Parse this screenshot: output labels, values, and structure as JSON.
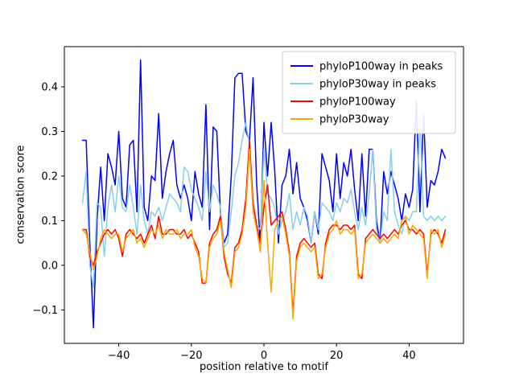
{
  "chart_data": {
    "type": "line",
    "title": "",
    "xlabel": "position relative to motif",
    "ylabel": "conservation score",
    "xlim": [
      -55,
      55
    ],
    "ylim": [
      -0.175,
      0.49
    ],
    "xticks": [
      -40,
      -20,
      0,
      20,
      40
    ],
    "xtick_labels": [
      "−40",
      "−20",
      "0",
      "20",
      "40"
    ],
    "yticks": [
      -0.1,
      0.0,
      0.1,
      0.2,
      0.3,
      0.4
    ],
    "ytick_labels": [
      "−0.1",
      "0.0",
      "0.1",
      "0.2",
      "0.3",
      "0.4"
    ],
    "grid": false,
    "legend_position": "upper right",
    "x": [
      -50,
      -49,
      -48,
      -47,
      -46,
      -45,
      -44,
      -43,
      -42,
      -41,
      -40,
      -39,
      -38,
      -37,
      -36,
      -35,
      -34,
      -33,
      -32,
      -31,
      -30,
      -29,
      -28,
      -27,
      -26,
      -25,
      -24,
      -23,
      -22,
      -21,
      -20,
      -19,
      -18,
      -17,
      -16,
      -15,
      -14,
      -13,
      -12,
      -11,
      -10,
      -9,
      -8,
      -7,
      -6,
      -5,
      -4,
      -3,
      -2,
      -1,
      0,
      1,
      2,
      3,
      4,
      5,
      6,
      7,
      8,
      9,
      10,
      11,
      12,
      13,
      14,
      15,
      16,
      17,
      18,
      19,
      20,
      21,
      22,
      23,
      24,
      25,
      26,
      27,
      28,
      29,
      30,
      31,
      32,
      33,
      34,
      35,
      36,
      37,
      38,
      39,
      40,
      41,
      42,
      43,
      44,
      45,
      46,
      47,
      48,
      49,
      50
    ],
    "series": [
      {
        "name": "phyloP100way in peaks",
        "color": "#0000ff",
        "values": [
          0.28,
          0.28,
          0.05,
          -0.14,
          0.1,
          0.22,
          0.1,
          0.25,
          0.22,
          0.18,
          0.3,
          0.15,
          0.13,
          0.27,
          0.28,
          0.12,
          0.46,
          0.13,
          0.1,
          0.2,
          0.19,
          0.34,
          0.15,
          0.21,
          0.25,
          0.28,
          0.18,
          0.15,
          0.18,
          0.15,
          0.1,
          0.21,
          0.16,
          0.13,
          0.36,
          0.08,
          0.31,
          0.3,
          0.12,
          0.05,
          0.07,
          0.2,
          0.42,
          0.43,
          0.43,
          0.3,
          0.28,
          0.42,
          0.18,
          0.05,
          0.32,
          0.2,
          0.32,
          0.21,
          0.05,
          0.18,
          0.2,
          0.26,
          0.16,
          0.23,
          0.15,
          0.13,
          0.1,
          0.05,
          0.12,
          0.07,
          0.25,
          0.22,
          0.19,
          0.12,
          0.25,
          0.15,
          0.23,
          0.2,
          0.26,
          0.17,
          0.1,
          0.25,
          0.11,
          0.26,
          0.26,
          0.1,
          0.05,
          0.21,
          0.16,
          0.21,
          0.18,
          0.15,
          0.1,
          0.16,
          0.13,
          0.17,
          0.37,
          0.12,
          0.34,
          0.13,
          0.19,
          0.18,
          0.21,
          0.26,
          0.24
        ]
      },
      {
        "name": "phyloP30way in peaks",
        "color": "#87ceeb",
        "values": [
          0.14,
          0.21,
          0.0,
          -0.05,
          0.14,
          0.13,
          0.02,
          0.13,
          0.18,
          0.12,
          0.2,
          0.13,
          0.12,
          0.18,
          0.13,
          0.07,
          0.18,
          0.1,
          0.07,
          0.12,
          0.11,
          0.13,
          0.1,
          0.13,
          0.16,
          0.15,
          0.14,
          0.12,
          0.22,
          0.21,
          0.17,
          0.15,
          0.13,
          0.1,
          0.21,
          0.12,
          0.18,
          0.16,
          0.13,
          0.04,
          0.05,
          0.12,
          0.2,
          0.23,
          0.28,
          0.32,
          0.27,
          0.12,
          0.09,
          0.08,
          0.26,
          0.16,
          0.15,
          0.13,
          0.07,
          0.1,
          0.12,
          0.16,
          0.08,
          0.12,
          0.09,
          0.13,
          0.11,
          0.05,
          0.12,
          0.08,
          0.14,
          0.13,
          0.12,
          0.1,
          0.14,
          0.12,
          0.15,
          0.14,
          0.17,
          0.12,
          0.08,
          0.13,
          0.09,
          0.16,
          0.26,
          0.08,
          0.05,
          0.12,
          0.1,
          0.26,
          0.12,
          0.09,
          0.07,
          0.11,
          0.1,
          0.12,
          0.12,
          0.33,
          0.11,
          0.1,
          0.11,
          0.1,
          0.11,
          0.1,
          0.11
        ]
      },
      {
        "name": "phyloP100way",
        "color": "#ff0000",
        "values": [
          0.08,
          0.08,
          0.02,
          0.0,
          0.03,
          0.05,
          0.07,
          0.08,
          0.07,
          0.08,
          0.06,
          0.02,
          0.07,
          0.08,
          0.07,
          0.06,
          0.07,
          0.05,
          0.07,
          0.09,
          0.06,
          0.11,
          0.07,
          0.07,
          0.08,
          0.08,
          0.07,
          0.07,
          0.08,
          0.06,
          0.07,
          0.05,
          0.03,
          -0.04,
          -0.04,
          0.05,
          0.07,
          0.08,
          0.11,
          0.02,
          -0.02,
          -0.04,
          0.04,
          0.05,
          0.08,
          0.15,
          0.28,
          0.14,
          0.09,
          0.05,
          0.13,
          0.18,
          0.09,
          0.1,
          0.11,
          0.12,
          0.08,
          0.03,
          -0.11,
          0.02,
          0.05,
          0.06,
          0.05,
          0.04,
          0.05,
          -0.02,
          -0.03,
          0.05,
          0.08,
          0.09,
          0.09,
          0.08,
          0.09,
          0.09,
          0.08,
          0.09,
          -0.02,
          -0.03,
          0.06,
          0.07,
          0.08,
          0.07,
          0.06,
          0.07,
          0.06,
          0.07,
          0.08,
          0.07,
          0.09,
          0.1,
          0.08,
          0.08,
          0.07,
          0.08,
          0.07,
          -0.02,
          0.07,
          0.08,
          0.07,
          0.05,
          0.08
        ]
      },
      {
        "name": "phyloP30way",
        "color": "#ffa500",
        "values": [
          0.08,
          0.07,
          0.03,
          -0.01,
          0.02,
          0.06,
          0.08,
          0.07,
          0.06,
          0.07,
          0.07,
          0.03,
          0.06,
          0.07,
          0.08,
          0.05,
          0.06,
          0.04,
          0.06,
          0.08,
          0.07,
          0.09,
          0.06,
          0.08,
          0.07,
          0.07,
          0.08,
          0.06,
          0.07,
          0.07,
          0.08,
          0.04,
          0.02,
          -0.03,
          -0.04,
          0.04,
          0.06,
          0.07,
          0.1,
          0.03,
          -0.01,
          -0.05,
          0.03,
          0.04,
          0.07,
          0.13,
          0.26,
          0.12,
          0.08,
          0.03,
          0.19,
          0.05,
          -0.06,
          0.08,
          0.1,
          0.11,
          0.07,
          0.02,
          -0.12,
          0.01,
          0.04,
          0.05,
          0.04,
          0.03,
          0.04,
          -0.03,
          -0.02,
          0.04,
          0.07,
          0.08,
          0.1,
          0.07,
          0.08,
          0.08,
          0.07,
          0.08,
          -0.03,
          -0.02,
          0.05,
          0.06,
          0.07,
          0.06,
          0.05,
          0.06,
          0.05,
          0.06,
          0.07,
          0.06,
          0.1,
          0.11,
          0.07,
          0.09,
          0.08,
          0.07,
          0.06,
          -0.03,
          0.08,
          0.07,
          0.08,
          0.04,
          0.07
        ]
      }
    ]
  }
}
